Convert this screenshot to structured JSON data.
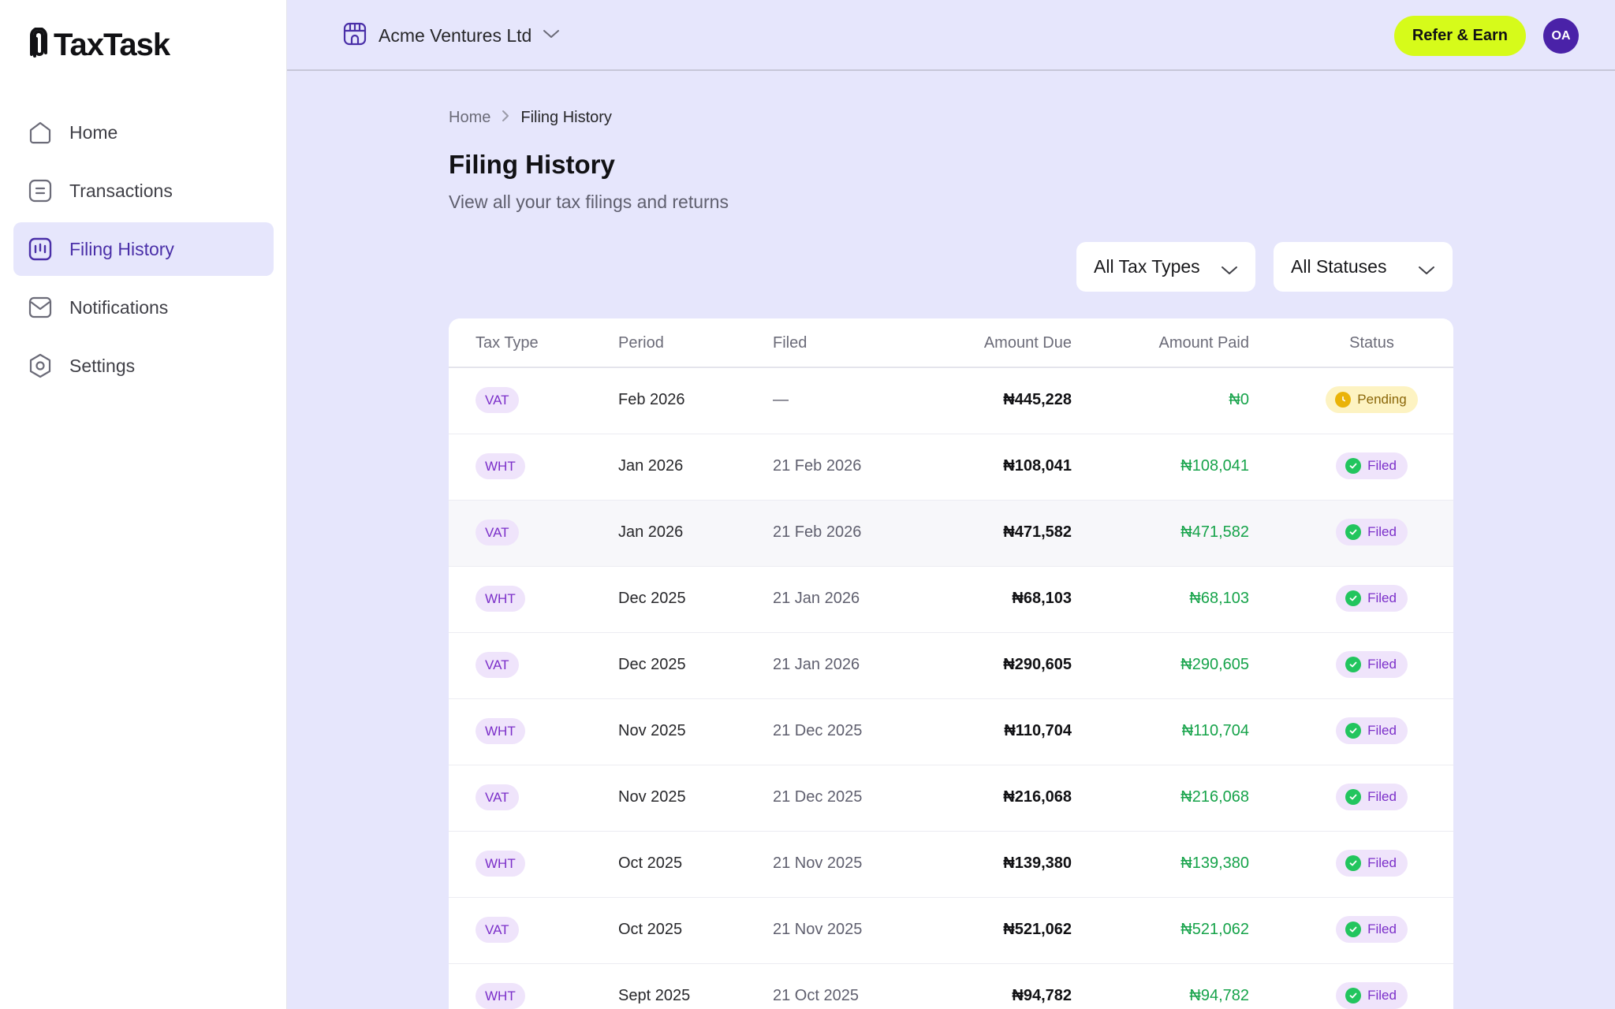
{
  "app": {
    "name": "TaxTask"
  },
  "sidebar": {
    "items": [
      {
        "label": "Home",
        "icon": "home-icon",
        "active": false
      },
      {
        "label": "Transactions",
        "icon": "receipt-icon",
        "active": false
      },
      {
        "label": "Filing History",
        "icon": "chart-bars-icon",
        "active": true
      },
      {
        "label": "Notifications",
        "icon": "inbox-icon",
        "active": false
      },
      {
        "label": "Settings",
        "icon": "gear-icon",
        "active": false
      }
    ]
  },
  "topbar": {
    "company": "Acme Ventures Ltd",
    "refer_label": "Refer & Earn",
    "avatar_initials": "OA"
  },
  "breadcrumb": {
    "home": "Home",
    "current": "Filing History"
  },
  "page": {
    "title": "Filing History",
    "subtitle": "View all your tax filings and returns"
  },
  "filters": {
    "tax_type": "All Tax Types",
    "status": "All Statuses"
  },
  "table": {
    "columns": {
      "type": "Tax Type",
      "period": "Period",
      "filed": "Filed",
      "due": "Amount Due",
      "paid": "Amount Paid",
      "status": "Status"
    },
    "rows": [
      {
        "type": "VAT",
        "period": "Feb 2026",
        "filed": "—",
        "due": "₦445,228",
        "paid": "₦0",
        "status": "Pending"
      },
      {
        "type": "WHT",
        "period": "Jan 2026",
        "filed": "21 Feb 2026",
        "due": "₦108,041",
        "paid": "₦108,041",
        "status": "Filed"
      },
      {
        "type": "VAT",
        "period": "Jan 2026",
        "filed": "21 Feb 2026",
        "due": "₦471,582",
        "paid": "₦471,582",
        "status": "Filed"
      },
      {
        "type": "WHT",
        "period": "Dec 2025",
        "filed": "21 Jan 2026",
        "due": "₦68,103",
        "paid": "₦68,103",
        "status": "Filed"
      },
      {
        "type": "VAT",
        "period": "Dec 2025",
        "filed": "21 Jan 2026",
        "due": "₦290,605",
        "paid": "₦290,605",
        "status": "Filed"
      },
      {
        "type": "WHT",
        "period": "Nov 2025",
        "filed": "21 Dec 2025",
        "due": "₦110,704",
        "paid": "₦110,704",
        "status": "Filed"
      },
      {
        "type": "VAT",
        "period": "Nov 2025",
        "filed": "21 Dec 2025",
        "due": "₦216,068",
        "paid": "₦216,068",
        "status": "Filed"
      },
      {
        "type": "WHT",
        "period": "Oct 2025",
        "filed": "21 Nov 2025",
        "due": "₦139,380",
        "paid": "₦139,380",
        "status": "Filed"
      },
      {
        "type": "VAT",
        "period": "Oct 2025",
        "filed": "21 Nov 2025",
        "due": "₦521,062",
        "paid": "₦521,062",
        "status": "Filed"
      },
      {
        "type": "WHT",
        "period": "Sept 2025",
        "filed": "21 Oct 2025",
        "due": "₦94,782",
        "paid": "₦94,782",
        "status": "Filed"
      }
    ]
  },
  "colors": {
    "accent": "#4a2fa8",
    "background": "#e6e6fc",
    "cta": "#d6fb1a",
    "paid_green": "#16a34a",
    "tag_bg": "#efe4fb",
    "tag_text": "#7b2fc9",
    "pending_bg": "#fdf3c2"
  }
}
